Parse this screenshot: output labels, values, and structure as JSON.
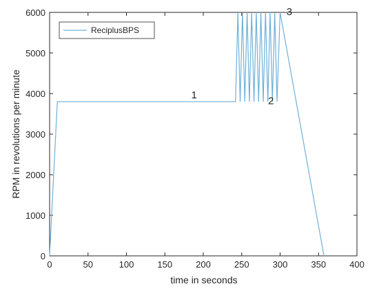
{
  "chart_data": {
    "type": "line",
    "xlabel": "time in seconds",
    "ylabel": "RPM in revolutions per minute",
    "xlim": [
      0,
      400
    ],
    "ylim": [
      0,
      6000
    ],
    "xticks": [
      0,
      50,
      100,
      150,
      200,
      250,
      300,
      350,
      400
    ],
    "yticks": [
      0,
      1000,
      2000,
      3000,
      4000,
      5000,
      6000
    ],
    "grid": false,
    "legend_position": "top-left",
    "series": [
      {
        "name": "ReciplusBPS",
        "color": "#6fb0d8",
        "x": [
          0,
          10,
          242,
          245,
          248,
          251,
          254,
          257,
          260,
          263,
          266,
          269,
          272,
          275,
          278,
          281,
          284,
          287,
          290,
          293,
          296,
          300,
          357
        ],
        "y": [
          0,
          3800,
          3800,
          6000,
          3800,
          6000,
          3800,
          6000,
          3800,
          6000,
          3800,
          6000,
          3800,
          6000,
          3800,
          6000,
          3800,
          6000,
          3800,
          6000,
          3800,
          6000,
          0
        ]
      }
    ],
    "annotations": [
      {
        "text": "1",
        "x": 188,
        "y": 3800
      },
      {
        "text": "2",
        "x": 288,
        "y": 3650
      },
      {
        "text": "3",
        "x": 312,
        "y": 5850
      }
    ]
  }
}
